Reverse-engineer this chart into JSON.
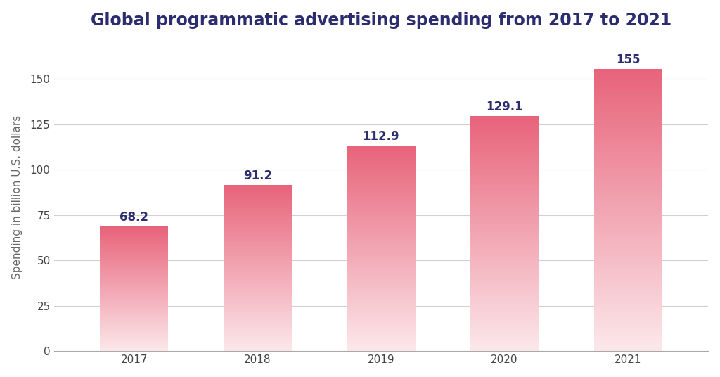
{
  "title": "Global programmatic advertising spending from 2017 to 2021",
  "ylabel": "Spending in billion U.S. dollars",
  "categories": [
    "2017",
    "2018",
    "2019",
    "2020",
    "2021"
  ],
  "values": [
    68.2,
    91.2,
    112.9,
    129.1,
    155
  ],
  "bar_color_top": "#e8637a",
  "bar_color_bottom": "#fce8eb",
  "ylim": [
    0,
    170
  ],
  "yticks": [
    0,
    25,
    50,
    75,
    100,
    125,
    150
  ],
  "label_color": "#2b2d6e",
  "title_color": "#2b2d6e",
  "background_color": "#ffffff",
  "grid_color": "#d0d0d0",
  "title_fontsize": 17,
  "label_fontsize": 11,
  "tick_fontsize": 11,
  "bar_label_fontsize": 12,
  "bar_width": 0.55
}
